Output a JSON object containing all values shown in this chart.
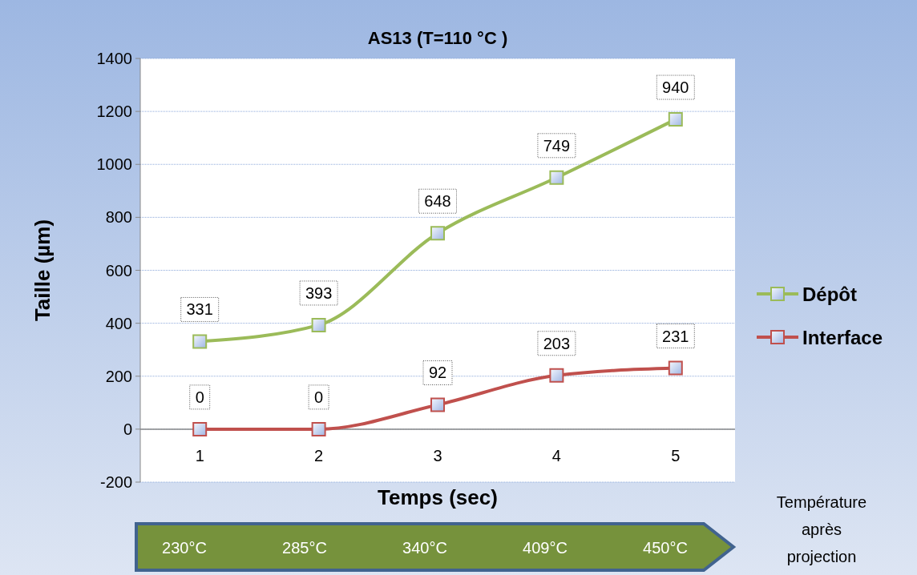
{
  "chart_data": {
    "type": "line",
    "title": "AS13 (T=110 °C )",
    "xlabel": "Temps (sec)",
    "ylabel": "Taille (µm)",
    "categories": [
      "1",
      "2",
      "3",
      "4",
      "5"
    ],
    "series": [
      {
        "name": "Dépôt",
        "color": "#9bbb59",
        "values": [
          331,
          393,
          740,
          950,
          1170
        ]
      },
      {
        "name": "Interface",
        "color": "#c0504d",
        "values": [
          0,
          0,
          92,
          203,
          231
        ]
      }
    ],
    "ylim": [
      -200,
      1400
    ],
    "yticks": [
      -200,
      0,
      200,
      400,
      600,
      800,
      1000,
      1200,
      1400
    ],
    "grid": "y",
    "legend": "right",
    "marker": "square",
    "annotations": [
      {
        "text": "331",
        "x": "1",
        "y": 331
      },
      {
        "text": "393",
        "x": "2",
        "y": 393
      },
      {
        "text": "648",
        "x": "3",
        "y": 740
      },
      {
        "text": "749",
        "x": "4",
        "y": 950
      },
      {
        "text": "940",
        "x": "5",
        "y": 1170
      },
      {
        "text": "0",
        "x": "1",
        "y": 0
      },
      {
        "text": "0",
        "x": "2",
        "y": 0
      },
      {
        "text": "92",
        "x": "3",
        "y": 92
      },
      {
        "text": "203",
        "x": "4",
        "y": 203
      },
      {
        "text": "231",
        "x": "5",
        "y": 231
      },
      "230°C",
      "285°C",
      "340°C",
      "409°C",
      "450°C",
      "Température après projection"
    ]
  }
}
